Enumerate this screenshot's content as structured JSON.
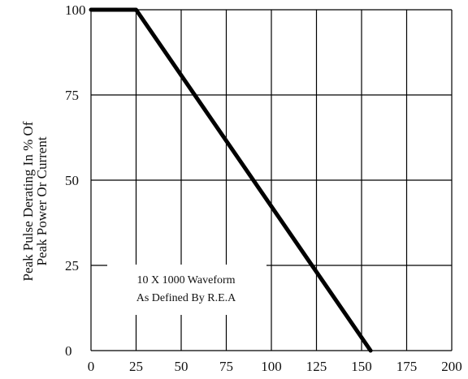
{
  "chart_data": {
    "type": "line",
    "title": "",
    "xlabel": "",
    "ylabel_lines": [
      "Peak Pulse Derating In % Of",
      "Peak Power Or Current"
    ],
    "x_ticks": [
      "0",
      "25",
      "50",
      "75",
      "100",
      "125",
      "150",
      "175",
      "200"
    ],
    "y_ticks": [
      "0",
      "25",
      "50",
      "75",
      "100"
    ],
    "xlim": [
      0,
      200
    ],
    "ylim": [
      0,
      100
    ],
    "grid": true,
    "series": [
      {
        "x": [
          0,
          25,
          155
        ],
        "y": [
          100,
          100,
          0
        ]
      }
    ],
    "annotation_lines": [
      "10 X 1000 Waveform",
      "As Defined By R.E.A"
    ],
    "colors": {
      "line": "#000000",
      "grid": "#000000",
      "text": "#111111",
      "background": "#ffffff"
    }
  }
}
